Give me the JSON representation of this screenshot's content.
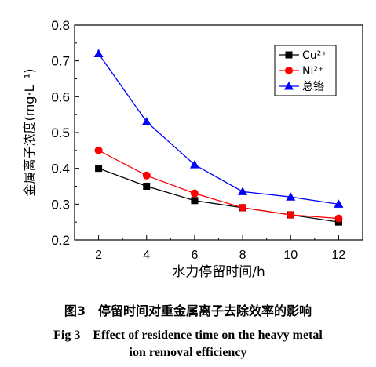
{
  "chart_data": {
    "type": "line",
    "x": [
      2,
      4,
      6,
      8,
      10,
      12
    ],
    "xlim": [
      1,
      13
    ],
    "ylim": [
      0.2,
      0.8
    ],
    "xticks": [
      2,
      4,
      6,
      8,
      10,
      12
    ],
    "yticks": [
      0.2,
      0.3,
      0.4,
      0.5,
      0.6,
      0.7,
      0.8
    ],
    "xlabel": "水力停留时间/h",
    "ylabel": "金属离子浓度(mg·L⁻¹)",
    "grid": false,
    "legend_position": "top-right",
    "series": [
      {
        "name": "Cu²⁺",
        "color": "#000000",
        "marker": "square",
        "values": [
          0.4,
          0.35,
          0.31,
          0.29,
          0.27,
          0.25
        ]
      },
      {
        "name": "Ni²⁺",
        "color": "#ff0000",
        "marker": "circle",
        "values": [
          0.45,
          0.38,
          0.33,
          0.29,
          0.27,
          0.26
        ]
      },
      {
        "name": "总铬",
        "color": "#0000ff",
        "marker": "triangle",
        "values": [
          0.72,
          0.53,
          0.41,
          0.335,
          0.32,
          0.3
        ]
      }
    ]
  },
  "caption": {
    "zh": "图3　停留时间对重金属离子去除效率的影响",
    "en_line1": "Fig 3　Effect of residence time on the heavy metal",
    "en_line2": "ion removal efficiency"
  }
}
